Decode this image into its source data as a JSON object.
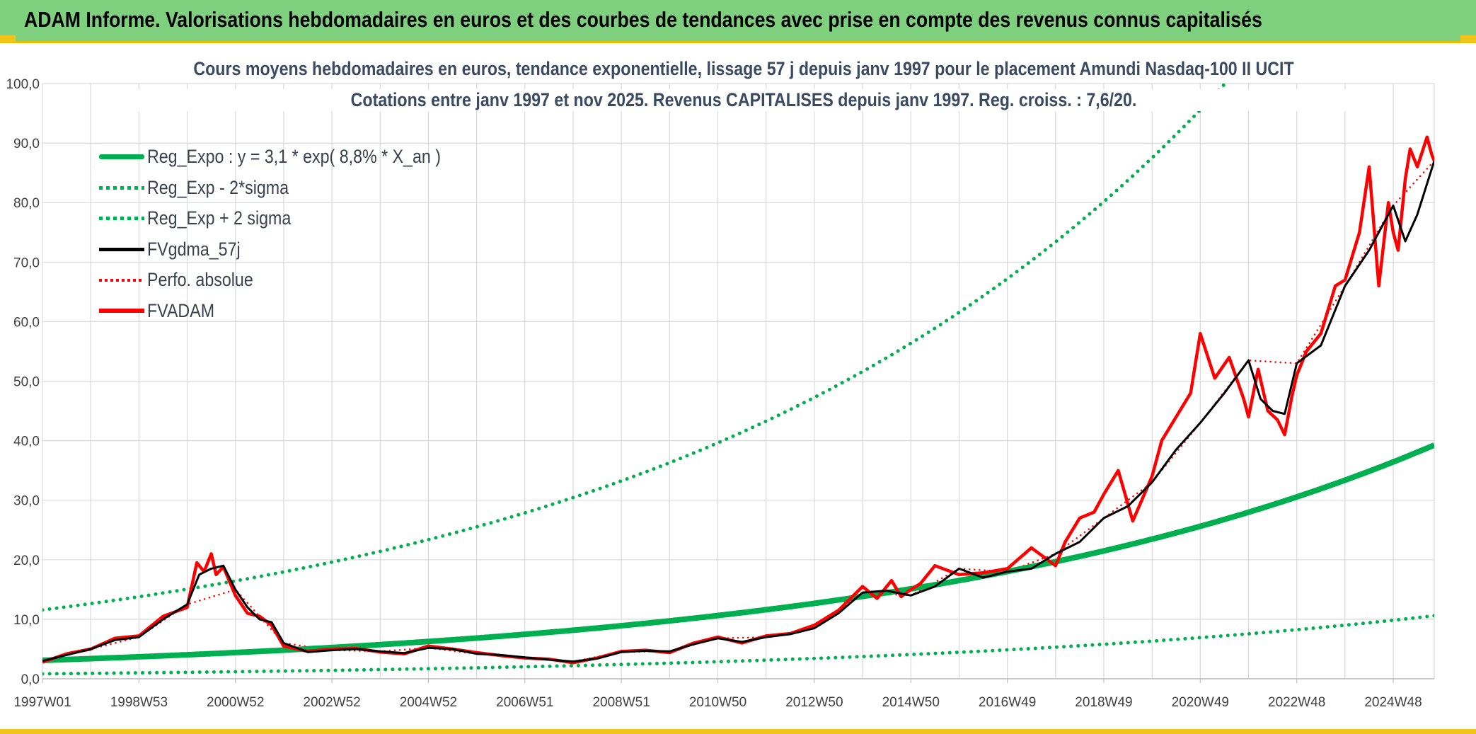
{
  "header": {
    "title": "ADAM Informe. Valorisations hebdomadaires en euros et des courbes de tendances avec prise en compte des revenus connus capitalisés"
  },
  "colors": {
    "header_bg": "#7ed07e",
    "accent_yellow": "#f0c419",
    "reg_expo": "#00b050",
    "fvgdma": "#000000",
    "perfo": "#ff0000",
    "fvadam": "#ff0000",
    "grid": "#d9d9d9",
    "title_text": "#3a4a63"
  },
  "chart_data": {
    "type": "line",
    "title": "Cours moyens hebdomadaires en euros, tendance exponentielle, lissage 57 j depuis janv 1997 pour le placement Amundi Nasdaq-100 II UCIT",
    "subtitle": "Cotations entre janv 1997 et nov 2025. Revenus CAPITALISES depuis janv 1997. Reg. croiss. : 7,6/20.",
    "xlabel": "",
    "ylabel": "",
    "ylim": [
      0,
      100
    ],
    "yticks": [
      "0,0",
      "10,0",
      "20,0",
      "30,0",
      "40,0",
      "50,0",
      "60,0",
      "70,0",
      "80,0",
      "90,0",
      "100,0"
    ],
    "xlim": [
      1997.0,
      2025.85
    ],
    "xticks": [
      {
        "label": "1997W01",
        "x": 1997.0
      },
      {
        "label": "1998W53",
        "x": 1999.0
      },
      {
        "label": "2000W52",
        "x": 2001.0
      },
      {
        "label": "2002W52",
        "x": 2003.0
      },
      {
        "label": "2004W52",
        "x": 2005.0
      },
      {
        "label": "2006W51",
        "x": 2007.0
      },
      {
        "label": "2008W51",
        "x": 2009.0
      },
      {
        "label": "2010W50",
        "x": 2011.0
      },
      {
        "label": "2012W50",
        "x": 2013.0
      },
      {
        "label": "2014W50",
        "x": 2015.0
      },
      {
        "label": "2016W49",
        "x": 2017.0
      },
      {
        "label": "2018W49",
        "x": 2019.0
      },
      {
        "label": "2020W49",
        "x": 2021.0
      },
      {
        "label": "2022W48",
        "x": 2023.0
      },
      {
        "label": "2024W48",
        "x": 2025.0
      }
    ],
    "grid": true,
    "legend_position": "top-left",
    "series": [
      {
        "name": "Reg_Expo : y = 3,1 * exp( 8,8% *  X_an )",
        "style": "solid",
        "color": "#00b050",
        "formula": {
          "a": 3.1,
          "rate": 0.088,
          "factor": 1.0
        }
      },
      {
        "name": "Reg_Exp - 2*sigma",
        "style": "dotted",
        "color": "#00b050",
        "formula": {
          "a": 3.1,
          "rate": 0.088,
          "factor": 0.27
        }
      },
      {
        "name": "Reg_Exp + 2 sigma",
        "style": "dotted",
        "color": "#00b050",
        "formula": {
          "a": 3.1,
          "rate": 0.088,
          "factor": 3.73
        }
      },
      {
        "name": "FVgdma_57j",
        "style": "solid",
        "color": "#000000",
        "x": [
          1997.0,
          1997.5,
          1998.0,
          1998.5,
          1999.0,
          1999.5,
          2000.0,
          2000.25,
          2000.5,
          2000.75,
          2001.0,
          2001.25,
          2001.5,
          2001.75,
          2002.0,
          2002.5,
          2003.0,
          2003.5,
          2004.0,
          2004.5,
          2005.0,
          2005.5,
          2006.0,
          2006.5,
          2007.0,
          2007.5,
          2008.0,
          2008.5,
          2009.0,
          2009.5,
          2010.0,
          2010.5,
          2011.0,
          2011.5,
          2012.0,
          2012.5,
          2013.0,
          2013.5,
          2014.0,
          2014.5,
          2015.0,
          2015.5,
          2016.0,
          2016.5,
          2017.0,
          2017.5,
          2018.0,
          2018.5,
          2019.0,
          2019.5,
          2020.0,
          2020.5,
          2021.0,
          2021.5,
          2022.0,
          2022.25,
          2022.5,
          2022.75,
          2023.0,
          2023.5,
          2024.0,
          2024.5,
          2025.0,
          2025.25,
          2025.5,
          2025.85
        ],
        "values": [
          3.0,
          4.0,
          5.0,
          6.5,
          7.0,
          10.0,
          12.5,
          17.5,
          18.5,
          19.0,
          15.0,
          12.0,
          10.0,
          9.5,
          6.0,
          4.5,
          4.8,
          5.0,
          4.6,
          4.3,
          5.2,
          5.0,
          4.2,
          4.0,
          3.6,
          3.2,
          2.9,
          3.4,
          4.5,
          4.7,
          4.6,
          5.8,
          6.8,
          6.2,
          7.0,
          7.5,
          8.5,
          11.0,
          14.5,
          14.8,
          14.0,
          15.5,
          18.5,
          17.0,
          18.0,
          18.5,
          21.0,
          23.0,
          27.0,
          29.0,
          33.0,
          38.5,
          43.0,
          48.0,
          53.5,
          47.0,
          45.0,
          44.5,
          53.0,
          56.0,
          66.0,
          72.0,
          79.5,
          73.5,
          78.0,
          87.0
        ]
      },
      {
        "name": "Perfo. absolue",
        "style": "dotted",
        "color": "#ff0000",
        "x": [
          1997.0,
          1998.0,
          1999.0,
          2000.0,
          2001.0,
          2002.0,
          2003.0,
          2004.0,
          2005.0,
          2006.0,
          2007.0,
          2008.0,
          2009.0,
          2010.0,
          2011.0,
          2012.0,
          2013.0,
          2014.0,
          2015.0,
          2016.0,
          2017.0,
          2018.0,
          2019.0,
          2020.0,
          2021.0,
          2022.0,
          2023.0,
          2024.0,
          2025.0,
          2025.85
        ],
        "values": [
          3.0,
          5.0,
          7.0,
          12.5,
          15.0,
          6.0,
          4.8,
          4.6,
          5.2,
          4.2,
          3.6,
          2.9,
          4.5,
          4.6,
          6.8,
          7.0,
          8.5,
          14.5,
          14.0,
          18.5,
          18.0,
          21.0,
          27.0,
          33.0,
          43.0,
          53.5,
          53.0,
          66.0,
          79.5,
          87.0
        ]
      },
      {
        "name": "FVADAM",
        "style": "solid",
        "color": "#ff0000",
        "x": [
          1997.0,
          1997.5,
          1998.0,
          1998.5,
          1999.0,
          1999.5,
          2000.0,
          2000.2,
          2000.35,
          2000.5,
          2000.6,
          2000.75,
          2001.0,
          2001.25,
          2001.5,
          2001.75,
          2002.0,
          2002.5,
          2003.0,
          2003.5,
          2004.0,
          2004.5,
          2005.0,
          2005.5,
          2006.0,
          2006.5,
          2007.0,
          2007.5,
          2008.0,
          2008.5,
          2009.0,
          2009.5,
          2010.0,
          2010.5,
          2011.0,
          2011.5,
          2012.0,
          2012.5,
          2013.0,
          2013.5,
          2014.0,
          2014.3,
          2014.6,
          2014.8,
          2015.0,
          2015.2,
          2015.5,
          2016.0,
          2016.5,
          2017.0,
          2017.5,
          2018.0,
          2018.2,
          2018.5,
          2018.8,
          2019.0,
          2019.3,
          2019.6,
          2020.0,
          2020.2,
          2020.5,
          2020.8,
          2021.0,
          2021.3,
          2021.6,
          2021.9,
          2022.0,
          2022.2,
          2022.4,
          2022.6,
          2022.75,
          2022.9,
          2023.0,
          2023.2,
          2023.5,
          2023.8,
          2024.0,
          2024.3,
          2024.5,
          2024.7,
          2024.9,
          2025.0,
          2025.1,
          2025.25,
          2025.35,
          2025.5,
          2025.7,
          2025.8,
          2025.85
        ],
        "values": [
          2.8,
          4.2,
          5.0,
          6.8,
          7.2,
          10.5,
          12.0,
          19.5,
          18.0,
          21.0,
          17.5,
          18.8,
          14.0,
          11.0,
          10.5,
          9.0,
          5.5,
          4.6,
          5.0,
          5.1,
          4.5,
          4.2,
          5.5,
          5.0,
          4.4,
          3.9,
          3.5,
          3.3,
          2.7,
          3.5,
          4.6,
          4.8,
          4.4,
          6.0,
          7.0,
          6.0,
          7.2,
          7.6,
          9.0,
          11.5,
          15.5,
          13.5,
          16.5,
          13.8,
          15.0,
          16.0,
          19.0,
          17.5,
          17.8,
          18.5,
          22.0,
          19.0,
          23.0,
          27.0,
          28.0,
          31.0,
          35.0,
          26.5,
          34.0,
          40.0,
          44.0,
          48.0,
          58.0,
          50.5,
          54.0,
          47.0,
          44.0,
          52.0,
          45.0,
          43.5,
          41.0,
          47.5,
          51.0,
          55.0,
          58.0,
          66.0,
          67.0,
          75.0,
          86.0,
          66.0,
          80.0,
          75.0,
          72.0,
          84.0,
          89.0,
          86.0,
          91.0,
          88.0,
          87.0
        ]
      }
    ]
  }
}
